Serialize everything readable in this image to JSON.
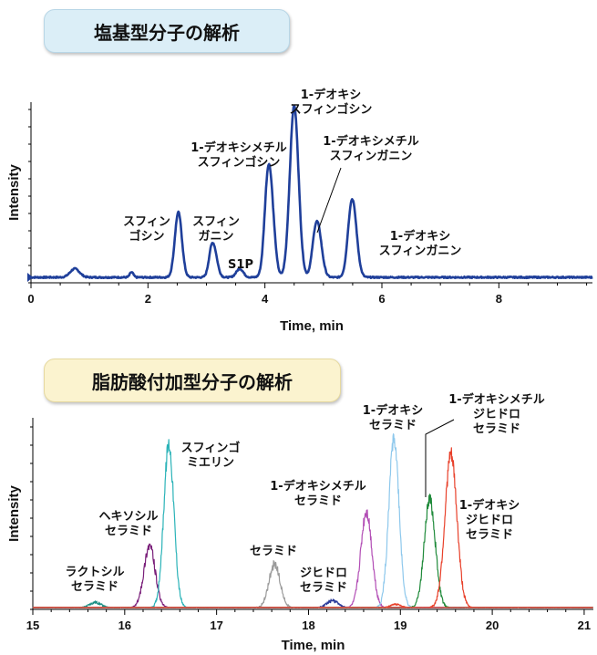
{
  "panels": [
    {
      "title": "塩基型分子の解析",
      "chart_data": {
        "type": "line",
        "xlabel": "Time, min",
        "ylabel": "Intensity",
        "xlim": [
          0,
          9.6
        ],
        "xticks": [
          0,
          2,
          4,
          6,
          8
        ],
        "series": [
          {
            "color": "#1f3f9a",
            "peaks": [
              {
                "x": 0.75,
                "h": 0.05,
                "w": 0.08
              },
              {
                "x": 1.72,
                "h": 0.03,
                "w": 0.03
              },
              {
                "x": 2.52,
                "h": 0.38,
                "w": 0.06
              },
              {
                "x": 3.12,
                "h": 0.18,
                "w": 0.06
              },
              {
                "x": 3.57,
                "h": 0.05,
                "w": 0.06
              },
              {
                "x": 4.08,
                "h": 0.58,
                "w": 0.07
              },
              {
                "x": 4.5,
                "h": 1.0,
                "w": 0.075
              },
              {
                "x": 4.9,
                "h": 0.3,
                "w": 0.07
              },
              {
                "x": 5.5,
                "h": 0.43,
                "w": 0.07
              }
            ]
          }
        ],
        "annotations": [
          {
            "lines": [
              "1-デオキシ",
              "スフィンゴシン"
            ],
            "x": 4.5
          },
          {
            "lines": [
              "1-デオキシメチル",
              "スフィンゴシン"
            ],
            "x": 4.1
          },
          {
            "lines": [
              "1-デオキシメチル",
              "スフィンガニン"
            ],
            "x": 4.9
          },
          {
            "lines": [
              "スフィン",
              "ゴシン"
            ],
            "x": 2.52
          },
          {
            "lines": [
              "スフィン",
              "ガニン"
            ],
            "x": 3.12
          },
          {
            "lines": [
              "S1P"
            ],
            "x": 3.57
          },
          {
            "lines": [
              "1-デオキシ",
              "スフィンガニン"
            ],
            "x": 5.5
          }
        ]
      }
    },
    {
      "title": "脂肪酸付加型分子の解析",
      "chart_data": {
        "type": "line",
        "xlabel": "Time, min",
        "ylabel": "Intensity",
        "xlim": [
          15,
          21.1
        ],
        "xticks": [
          15,
          16,
          17,
          18,
          19,
          20,
          21
        ],
        "series": [
          {
            "color": "#1a8f84",
            "peak": 15.68,
            "h": 0.03,
            "w": 0.06
          },
          {
            "color": "#7a1f7a",
            "peak": 16.27,
            "h": 0.36,
            "w": 0.06
          },
          {
            "color": "#2bb3b8",
            "peak": 16.48,
            "h": 0.94,
            "w": 0.055
          },
          {
            "color": "#9a9a9a",
            "peak": 17.63,
            "h": 0.25,
            "w": 0.06
          },
          {
            "color": "#2a3a9a",
            "peak": 18.26,
            "h": 0.04,
            "w": 0.06
          },
          {
            "color": "#b24db5",
            "peak": 18.63,
            "h": 0.55,
            "w": 0.06
          },
          {
            "color": "#8ec8ec",
            "peak": 18.93,
            "h": 0.98,
            "w": 0.055
          },
          {
            "color": "#1f8a3a",
            "peak": 19.32,
            "h": 0.62,
            "w": 0.06
          },
          {
            "color": "#e8402a",
            "peak": 19.55,
            "h": 0.88,
            "w": 0.065
          },
          {
            "color": "#e8402a",
            "peak": 18.95,
            "h": 0.02,
            "w": 0.05
          }
        ],
        "annotations": [
          {
            "lines": [
              "ラクトシル",
              "セラミド"
            ]
          },
          {
            "lines": [
              "ヘキソシル",
              "セラミド"
            ]
          },
          {
            "lines": [
              "スフィンゴ",
              "ミエリン"
            ]
          },
          {
            "lines": [
              "セラミド"
            ]
          },
          {
            "lines": [
              "ジヒドロ",
              "セラミド"
            ]
          },
          {
            "lines": [
              "1-デオキシメチル",
              "セラミド"
            ]
          },
          {
            "lines": [
              "1-デオキシ",
              "セラミド"
            ]
          },
          {
            "lines": [
              "1-デオキシメチル",
              "ジヒドロ",
              "セラミド"
            ]
          },
          {
            "lines": [
              "1-デオキシ",
              "ジヒドロ",
              "セラミド"
            ]
          }
        ]
      }
    }
  ]
}
